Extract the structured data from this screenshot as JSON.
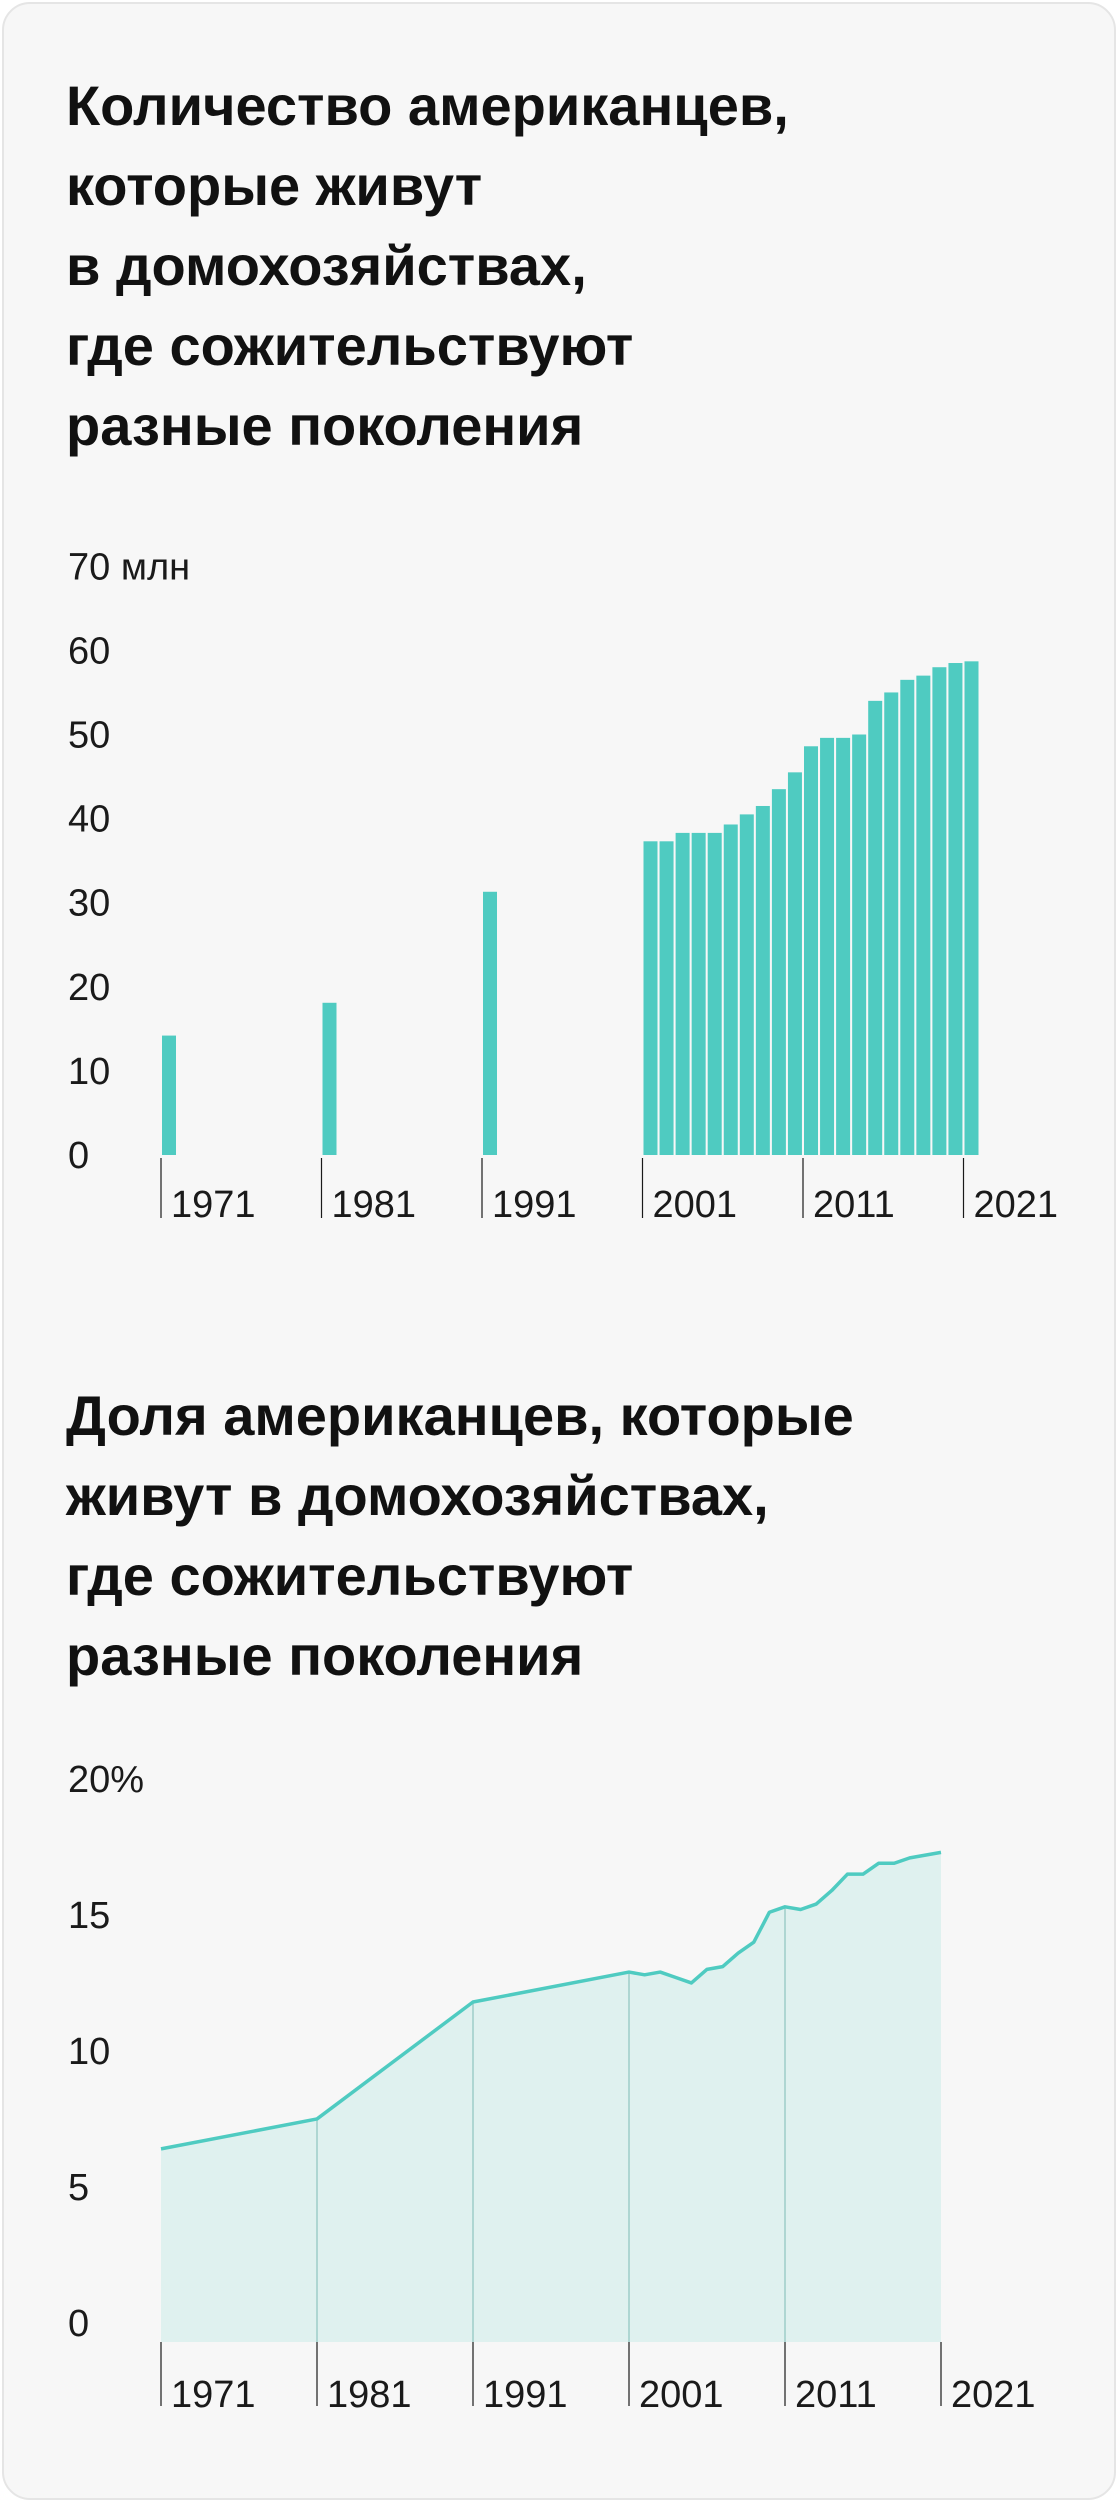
{
  "colors": {
    "accent": "#4fcbc1",
    "area_fill": "#dff1ef",
    "separator": "#aed6d2",
    "background": "#f7f7f7"
  },
  "charts": {
    "count": {
      "title": "Количество американцев,\nкоторые живут\nв домохозяйствах,\nгде сожительствуют\nразные поколения"
    },
    "share": {
      "title": "Доля американцев, которые\nживут в домохозяйствах,\nгде сожительствуют\nразные поколения"
    }
  },
  "chart_data": [
    {
      "type": "bar",
      "title": "Количество американцев, которые живут в домохозяйствах, где сожительствуют разные поколения",
      "unit": "млн",
      "ylim": [
        0,
        70
      ],
      "y_ticks": [
        "0",
        "10",
        "20",
        "30",
        "40",
        "50",
        "60",
        "70 млн"
      ],
      "x_ticks": [
        "1971",
        "1981",
        "1991",
        "2001",
        "2011",
        "2021"
      ],
      "grid": false,
      "x": [
        1971,
        1981,
        1991,
        2001,
        2002,
        2003,
        2004,
        2005,
        2006,
        2007,
        2008,
        2009,
        2010,
        2011,
        2012,
        2013,
        2014,
        2015,
        2016,
        2017,
        2018,
        2019,
        2020,
        2021
      ],
      "values": [
        14.2,
        18.1,
        31.3,
        37.3,
        37.3,
        38.3,
        38.3,
        38.3,
        39.3,
        40.5,
        41.5,
        43.5,
        45.5,
        48.6,
        49.6,
        49.6,
        50.0,
        54.0,
        55.0,
        56.5,
        57.0,
        58.0,
        58.5,
        58.7
      ]
    },
    {
      "type": "area",
      "title": "Доля американцев, которые живут в домохозяйствах, где сожительствуют разные поколения",
      "unit": "%",
      "ylim": [
        0,
        20
      ],
      "y_ticks": [
        "0",
        "5",
        "10",
        "15",
        "20%"
      ],
      "x_ticks": [
        "1971",
        "1981",
        "1991",
        "2001",
        "2011",
        "2021"
      ],
      "grid": false,
      "x": [
        1971,
        1981,
        1991,
        2001,
        2002,
        2003,
        2004,
        2005,
        2006,
        2007,
        2008,
        2009,
        2010,
        2011,
        2012,
        2013,
        2014,
        2015,
        2016,
        2017,
        2018,
        2019,
        2020,
        2021
      ],
      "values": [
        7.1,
        8.2,
        12.5,
        13.6,
        13.5,
        13.6,
        13.4,
        13.2,
        13.7,
        13.8,
        14.3,
        14.7,
        15.8,
        16.0,
        15.9,
        16.1,
        16.6,
        17.2,
        17.2,
        17.6,
        17.6,
        17.8,
        17.9,
        18.0
      ]
    }
  ]
}
